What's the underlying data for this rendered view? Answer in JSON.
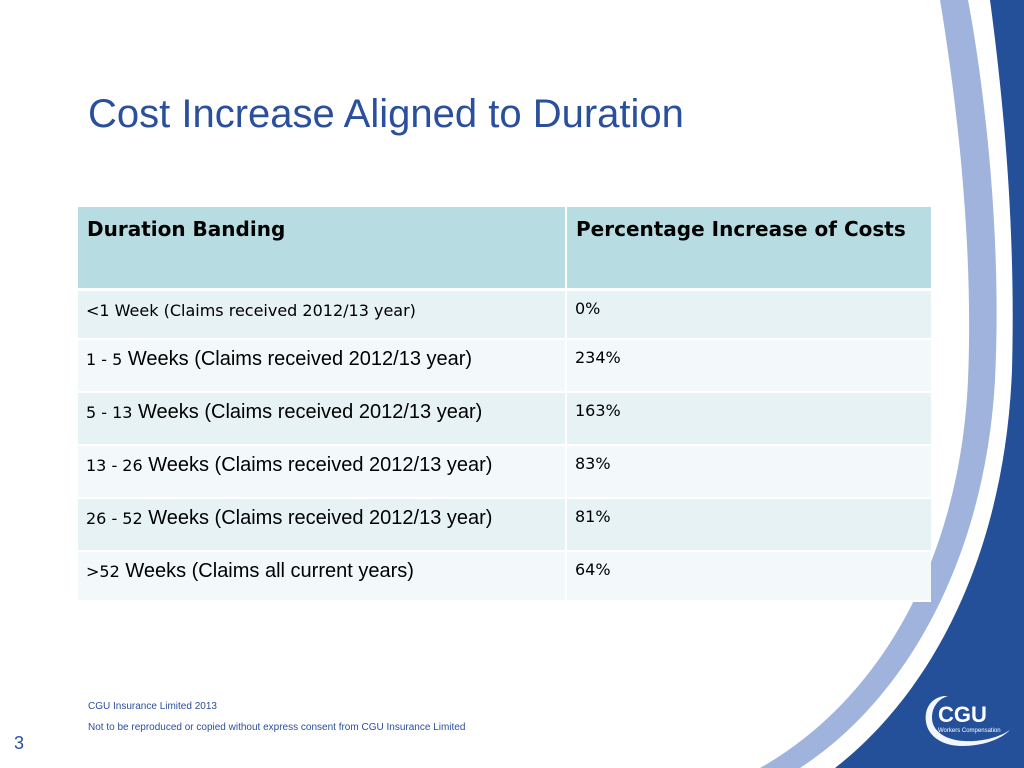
{
  "slide": {
    "title": "Cost Increase Aligned to Duration",
    "page_number": "3"
  },
  "table": {
    "headers": [
      "Duration Banding",
      "Percentage Increase of Costs"
    ],
    "rows": [
      {
        "band_prefix": "<1 Week (Claims received 2012/13 year)",
        "band_rest": "",
        "pct": "0%"
      },
      {
        "band_prefix": "1 - 5",
        "band_rest": " Weeks (Claims received 2012/13 year)",
        "pct": "234%"
      },
      {
        "band_prefix": "5 - 13",
        "band_rest": " Weeks (Claims received 2012/13 year)",
        "pct": "163%"
      },
      {
        "band_prefix": "13 - 26",
        "band_rest": " Weeks (Claims received 2012/13 year)",
        "pct": "83%"
      },
      {
        "band_prefix": "26 - 52",
        "band_rest": " Weeks (Claims received 2012/13 year)",
        "pct": "81%"
      },
      {
        "band_prefix": ">52",
        "band_rest": " Weeks (Claims all current years)",
        "pct": "64%"
      }
    ]
  },
  "footer": {
    "line1": "CGU Insurance Limited 2013",
    "line2": "Not to be reproduced or copied without express consent from CGU Insurance Limited"
  },
  "logo": {
    "name": "CGU",
    "tagline": "Workers Compensation"
  },
  "colors": {
    "title_blue": "#2a4f9c",
    "header_fill": "#b7dde2",
    "swoosh_dark": "#24509a",
    "swoosh_light": "#9fb3dc"
  }
}
